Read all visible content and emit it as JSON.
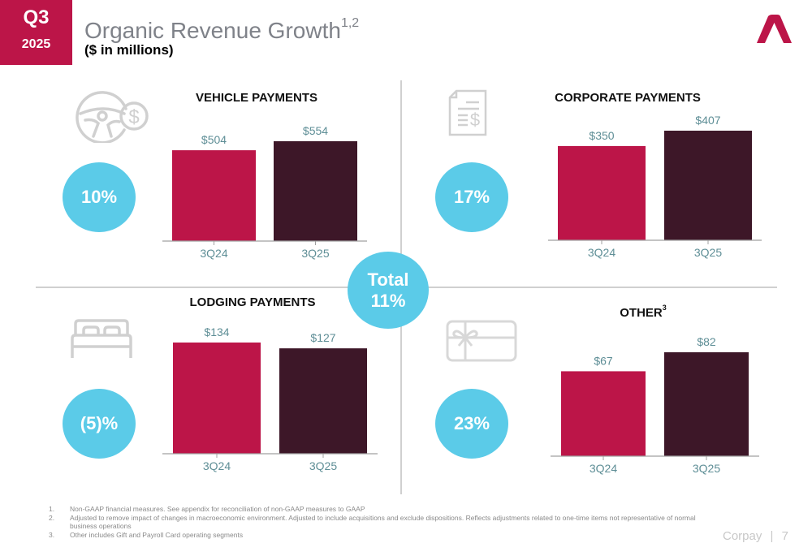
{
  "header": {
    "quarter": "Q3",
    "year": "2025",
    "title": "Organic Revenue Growth",
    "title_superscript": "1,2",
    "subtitle": "($ in millions)"
  },
  "colors": {
    "brand": "#BC1548",
    "prior_year_bar": "#BC1548",
    "current_year_bar": "#3D1728",
    "growth_bubble": "#5BCBE8",
    "value_label": "#5E8E96",
    "divider": "#D0D0D0"
  },
  "total": {
    "label": "Total",
    "value": "11%"
  },
  "chart_data": [
    {
      "type": "bar",
      "title": "VEHICLE PAYMENTS",
      "icon": "steering-wheel-dollar-icon",
      "growth": "10%",
      "categories": [
        "3Q24",
        "3Q25"
      ],
      "values": [
        504,
        554
      ],
      "labels": [
        "$504",
        "$554"
      ],
      "xlabel": "",
      "ylabel": "",
      "grid": false
    },
    {
      "type": "bar",
      "title": "CORPORATE PAYMENTS",
      "icon": "invoice-dollar-icon",
      "growth": "17%",
      "categories": [
        "3Q24",
        "3Q25"
      ],
      "values": [
        350,
        407
      ],
      "labels": [
        "$350",
        "$407"
      ],
      "xlabel": "",
      "ylabel": "",
      "grid": false
    },
    {
      "type": "bar",
      "title": "LODGING PAYMENTS",
      "icon": "bed-icon",
      "growth": "(5)%",
      "categories": [
        "3Q24",
        "3Q25"
      ],
      "values": [
        134,
        127
      ],
      "labels": [
        "$134",
        "$127"
      ],
      "xlabel": "",
      "ylabel": "",
      "grid": false
    },
    {
      "type": "bar",
      "title": "OTHER",
      "title_superscript": "3",
      "icon": "gift-card-icon",
      "growth": "23%",
      "categories": [
        "3Q24",
        "3Q25"
      ],
      "values": [
        67,
        82
      ],
      "labels": [
        "$67",
        "$82"
      ],
      "xlabel": "",
      "ylabel": "",
      "grid": false
    }
  ],
  "footnotes": [
    {
      "num": "1.",
      "text": "Non-GAAP financial measures. See appendix for reconciliation of non-GAAP measures to GAAP"
    },
    {
      "num": "2.",
      "text": "Adjusted to remove impact of changes in macroeconomic environment. Adjusted to include acquisitions and exclude dispositions. Reflects adjustments related to one-time items not representative of normal business operations"
    },
    {
      "num": "3.",
      "text": "Other includes Gift and Payroll Card operating segments"
    }
  ],
  "footer": {
    "company": "Corpay",
    "separator": "|",
    "page": "7"
  }
}
